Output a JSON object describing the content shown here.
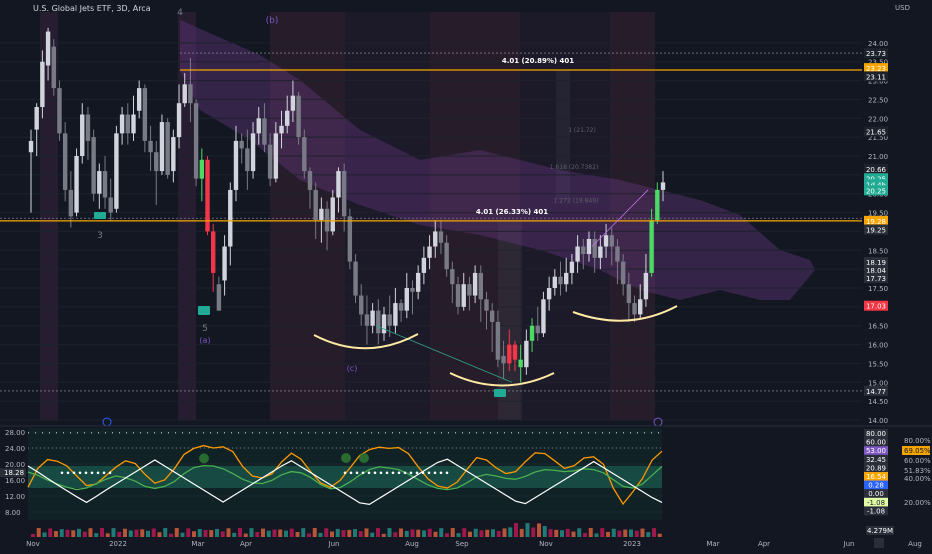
{
  "header": {
    "title": "U.S. Global Jets ETF, 3D, Arca",
    "currency": "USD"
  },
  "colors": {
    "background": "#131722",
    "up": "#22ab94",
    "down": "#f23645",
    "neutral_up": "#d1d4dc",
    "neutral_down": "#787b86",
    "level_line": "#f7a600",
    "cloud": "#6f3b8f",
    "highlight_green": "#4cd964",
    "highlight_red": "#f2364a",
    "arc": "#ffe9a3"
  },
  "chart_data": [
    {
      "type": "candlestick",
      "title": "U.S. Global Jets ETF, 3D, Arca",
      "ylim": [
        14.0,
        24.5
      ],
      "x_ticks": [
        "Nov",
        "2022",
        "Mar",
        "Apr",
        "Jun",
        "Aug",
        "Sep",
        "Nov",
        "2023",
        "Mar",
        "Apr",
        "Jun",
        "Aug"
      ],
      "y_ticks": [
        "24.00",
        "23.50",
        "23.00",
        "22.50",
        "22.00",
        "21.50",
        "21.00",
        "20.50",
        "20.00",
        "19.50",
        "19.00",
        "18.50",
        "18.00",
        "17.50",
        "17.00",
        "16.50",
        "16.00",
        "15.50",
        "15.00",
        "14.50",
        "14.00"
      ],
      "price_tags": [
        {
          "label": "23.73",
          "value": 23.73,
          "color": "#1e222d"
        },
        {
          "label": "23.23",
          "value": 23.33,
          "color": "#f7a600"
        },
        {
          "label": "23.11",
          "value": 23.11,
          "color": "#1e222d"
        },
        {
          "label": "21.65",
          "value": 21.65,
          "color": "#1e222d"
        },
        {
          "label": "20.66",
          "value": 20.66,
          "color": "#1e222d"
        },
        {
          "label": "20.25",
          "value": 20.41,
          "color": "#22ab94"
        },
        {
          "label": "1d 4h",
          "value": 20.25,
          "color": "#22ab94"
        },
        {
          "label": "20.25",
          "value": 20.09,
          "color": "#22ab94"
        },
        {
          "label": "19.28",
          "value": 19.28,
          "color": "#f7a600"
        },
        {
          "label": "19.25",
          "value": 19.05,
          "color": "#2a2e39"
        },
        {
          "label": "18.19",
          "value": 18.19,
          "color": "#2a2e39"
        },
        {
          "label": "18.04",
          "value": 17.98,
          "color": "#2a2e39"
        },
        {
          "label": "17.73",
          "value": 17.77,
          "color": "#2a2e39"
        },
        {
          "label": "17.03",
          "value": 17.03,
          "color": "#f23645"
        },
        {
          "label": "14.77",
          "value": 14.77,
          "color": "#2a2e39"
        }
      ],
      "levels": [
        {
          "value": 23.28,
          "label": "4.01 (20.89%) 401"
        },
        {
          "value": 19.28,
          "label": "4.01 (26.33%) 401"
        }
      ],
      "fib_labels": [
        "1 (21.72)",
        "1.618 (20.7382)",
        "1.272 (19.849)"
      ],
      "wave_labels": [
        "4",
        "(b)",
        "3",
        "5",
        "(a)",
        "(c)"
      ],
      "candles": [
        [
          21.1,
          21.4,
          19.5,
          21.7
        ],
        [
          21.7,
          22.3,
          21.0,
          22.4
        ],
        [
          22.3,
          23.5,
          22.0,
          23.8
        ],
        [
          23.4,
          24.3,
          23.0,
          24.4
        ],
        [
          23.9,
          22.8,
          22.6,
          24.1
        ],
        [
          22.8,
          21.6,
          21.4,
          23.0
        ],
        [
          21.6,
          20.1,
          19.8,
          21.9
        ],
        [
          20.1,
          19.4,
          19.1,
          20.6
        ],
        [
          19.5,
          21.0,
          19.4,
          21.2
        ],
        [
          21.0,
          22.1,
          20.8,
          22.4
        ],
        [
          22.1,
          21.4,
          20.9,
          22.3
        ],
        [
          21.5,
          20.0,
          19.8,
          21.7
        ],
        [
          20.0,
          20.6,
          19.6,
          20.8
        ],
        [
          20.6,
          19.9,
          19.6,
          21.0
        ],
        [
          19.9,
          19.5,
          19.3,
          20.4
        ],
        [
          19.6,
          21.6,
          19.5,
          21.8
        ],
        [
          21.6,
          22.1,
          21.3,
          22.3
        ],
        [
          22.1,
          21.6,
          21.3,
          22.4
        ],
        [
          21.6,
          22.1,
          21.4,
          22.6
        ],
        [
          22.2,
          22.8,
          22.0,
          23.0
        ],
        [
          22.8,
          21.4,
          21.1,
          22.9
        ],
        [
          21.4,
          21.1,
          20.6,
          21.8
        ],
        [
          21.1,
          20.6,
          19.7,
          21.4
        ],
        [
          20.6,
          21.9,
          20.5,
          22.1
        ],
        [
          21.9,
          20.5,
          20.4,
          22.0
        ],
        [
          20.6,
          21.5,
          20.3,
          21.7
        ],
        [
          21.5,
          22.4,
          21.2,
          22.9
        ],
        [
          22.4,
          22.9,
          22.3,
          23.2
        ],
        [
          22.9,
          22.4,
          21.9,
          23.6
        ],
        [
          22.4,
          20.4,
          20.2,
          22.5
        ],
        [
          20.4,
          20.9,
          19.8,
          21.2
        ],
        [
          20.9,
          19.0,
          18.9,
          21.0
        ],
        [
          19.0,
          17.9,
          17.4,
          19.2
        ],
        [
          17.6,
          16.9,
          16.9,
          17.8
        ],
        [
          17.7,
          18.6,
          17.3,
          18.9
        ],
        [
          18.6,
          20.1,
          18.1,
          20.3
        ],
        [
          20.1,
          21.4,
          19.8,
          21.8
        ],
        [
          21.4,
          21.2,
          20.8,
          21.6
        ],
        [
          21.2,
          20.6,
          20.1,
          21.7
        ],
        [
          20.6,
          21.6,
          20.4,
          21.9
        ],
        [
          21.6,
          22.0,
          21.3,
          22.3
        ],
        [
          22.0,
          21.3,
          21.1,
          22.4
        ],
        [
          21.3,
          20.4,
          20.2,
          21.6
        ],
        [
          20.4,
          21.6,
          20.3,
          21.9
        ],
        [
          21.6,
          21.8,
          21.2,
          22.2
        ],
        [
          21.8,
          22.2,
          21.6,
          22.6
        ],
        [
          22.2,
          22.6,
          21.9,
          23.0
        ],
        [
          22.6,
          21.5,
          21.3,
          22.7
        ],
        [
          21.5,
          20.6,
          20.4,
          21.7
        ],
        [
          20.6,
          20.1,
          19.6,
          20.7
        ],
        [
          20.1,
          19.3,
          18.8,
          20.3
        ],
        [
          19.3,
          19.6,
          18.7,
          19.9
        ],
        [
          19.6,
          19.0,
          18.5,
          19.8
        ],
        [
          19.0,
          19.9,
          18.9,
          20.1
        ],
        [
          19.9,
          20.6,
          19.5,
          20.7
        ],
        [
          20.6,
          19.4,
          19.0,
          20.8
        ],
        [
          19.4,
          18.2,
          18.0,
          19.6
        ],
        [
          18.2,
          17.3,
          17.1,
          18.4
        ],
        [
          17.3,
          16.8,
          16.5,
          17.6
        ],
        [
          16.8,
          16.5,
          16.0,
          17.3
        ],
        [
          16.5,
          16.9,
          16.3,
          17.1
        ],
        [
          16.9,
          16.3,
          16.0,
          17.2
        ],
        [
          16.3,
          16.8,
          16.1,
          17.0
        ],
        [
          16.8,
          16.5,
          16.2,
          17.3
        ],
        [
          16.5,
          17.1,
          16.3,
          17.5
        ],
        [
          17.1,
          16.9,
          16.6,
          17.2
        ],
        [
          16.9,
          17.5,
          16.7,
          17.9
        ],
        [
          17.5,
          17.4,
          16.8,
          17.7
        ],
        [
          17.4,
          17.9,
          17.2,
          18.1
        ],
        [
          17.9,
          18.3,
          17.6,
          18.6
        ],
        [
          18.3,
          18.6,
          18.0,
          18.9
        ],
        [
          18.6,
          19.0,
          18.3,
          19.3
        ],
        [
          19.0,
          18.7,
          18.4,
          19.3
        ],
        [
          18.7,
          18.0,
          17.8,
          18.9
        ],
        [
          18.0,
          17.6,
          17.1,
          18.2
        ],
        [
          17.6,
          17.0,
          16.8,
          17.8
        ],
        [
          17.0,
          17.6,
          16.9,
          17.9
        ],
        [
          17.6,
          17.3,
          16.9,
          17.8
        ],
        [
          17.3,
          17.9,
          17.1,
          18.1
        ],
        [
          17.9,
          17.2,
          16.6,
          18.1
        ],
        [
          17.2,
          16.9,
          16.4,
          17.4
        ],
        [
          16.9,
          16.6,
          15.8,
          17.1
        ],
        [
          16.6,
          15.6,
          15.4,
          16.9
        ],
        [
          15.7,
          15.5,
          15.1,
          16.1
        ],
        [
          15.5,
          16.0,
          15.3,
          16.4
        ],
        [
          16.0,
          15.6,
          15.3,
          16.1
        ],
        [
          15.6,
          15.4,
          15.0,
          16.0
        ],
        [
          15.4,
          16.1,
          15.2,
          16.4
        ],
        [
          16.1,
          16.5,
          15.8,
          16.7
        ],
        [
          16.5,
          16.3,
          16.1,
          17.0
        ],
        [
          16.3,
          17.2,
          16.2,
          17.4
        ],
        [
          17.2,
          17.5,
          16.9,
          17.8
        ],
        [
          17.5,
          17.8,
          17.3,
          18.0
        ],
        [
          17.8,
          17.6,
          17.3,
          18.2
        ],
        [
          17.6,
          17.9,
          17.4,
          18.3
        ],
        [
          17.9,
          18.2,
          17.6,
          18.4
        ],
        [
          18.2,
          18.6,
          17.9,
          18.9
        ],
        [
          18.6,
          18.4,
          18.0,
          18.8
        ],
        [
          18.4,
          18.8,
          18.2,
          19.0
        ],
        [
          18.8,
          18.3,
          17.9,
          19.0
        ],
        [
          18.3,
          18.6,
          18.0,
          18.9
        ],
        [
          18.6,
          18.9,
          18.3,
          19.2
        ],
        [
          18.9,
          18.6,
          18.1,
          19.1
        ],
        [
          18.6,
          18.2,
          17.6,
          18.8
        ],
        [
          18.2,
          17.6,
          17.3,
          18.4
        ],
        [
          17.6,
          17.1,
          16.6,
          17.9
        ],
        [
          17.1,
          16.8,
          16.6,
          17.3
        ],
        [
          16.8,
          17.2,
          16.7,
          17.6
        ],
        [
          17.2,
          17.9,
          17.0,
          18.4
        ],
        [
          17.9,
          19.3,
          17.8,
          19.6
        ],
        [
          19.3,
          20.1,
          19.2,
          20.3
        ],
        [
          20.1,
          20.3,
          19.8,
          20.6
        ]
      ]
    },
    {
      "type": "line",
      "title": "",
      "ylim": [
        6.0,
        29.0
      ],
      "y_ticks": [
        "28.00",
        "24.00",
        "20.00",
        "16.00",
        "12.00",
        "8.00"
      ],
      "left_value": "18.28",
      "right_tags": [
        {
          "label": "80.00",
          "value": 28.0
        },
        {
          "label": "60.00",
          "value": 26.4
        },
        {
          "label": "53.00",
          "value": 24.9
        },
        {
          "label": "32.45",
          "value": 23.4
        },
        {
          "label": "20.89",
          "value": 21.9
        },
        {
          "label": "16.54",
          "value": 20.4
        },
        {
          "label": "0.28",
          "value": 18.9
        },
        {
          "label": "0.00",
          "value": 17.4
        },
        {
          "label": "-1.08",
          "value": 15.9
        },
        {
          "label": "-1.08",
          "value": 14.4
        }
      ],
      "pct_labels": [
        "80.00%",
        "69.05%",
        "60.00%",
        "51.83%",
        "40.00%",
        "20.00%"
      ],
      "volume_label": "4.279M",
      "series": [
        {
          "values": [
            14.2,
            18.9,
            21.1,
            20.7,
            19.5,
            17.0,
            14.6,
            15.0,
            17.1,
            19.2,
            20.8,
            20.1,
            17.4,
            15.2,
            16.0,
            18.8,
            22.4,
            23.9,
            24.6,
            24.0,
            24.3,
            23.1,
            19.4,
            17.0,
            16.5,
            17.5,
            20.5,
            22.7,
            21.2,
            18.0,
            15.3,
            14.2,
            15.9,
            19.0,
            22.1,
            23.6,
            24.2,
            23.9,
            24.1,
            22.6,
            19.3,
            16.3,
            14.5,
            14.0,
            15.5,
            18.6,
            21.6,
            21.0,
            19.0,
            17.6,
            18.1,
            20.6,
            22.8,
            22.6,
            20.8,
            18.9,
            19.6,
            21.5,
            21.8,
            19.9,
            14.0,
            10.0,
            13.0,
            16.4,
            21.0,
            23.2
          ]
        },
        {
          "values": [
            18.0,
            17.2,
            16.0,
            15.0,
            14.2,
            13.6,
            14.0,
            15.1,
            16.2,
            17.0,
            16.6,
            15.7,
            14.4,
            13.9,
            14.4,
            15.6,
            17.6,
            19.1,
            19.6,
            19.5,
            18.8,
            17.6,
            16.2,
            15.3,
            15.1,
            15.9,
            17.3,
            18.1,
            17.8,
            16.6,
            14.9,
            13.8,
            14.1,
            15.5,
            17.2,
            18.6,
            19.3,
            19.0,
            18.6,
            17.5,
            16.1,
            14.8,
            13.9,
            13.6,
            14.0,
            15.3,
            16.8,
            17.4,
            17.0,
            16.4,
            16.2,
            16.9,
            18.0,
            18.6,
            18.4,
            18.1,
            18.3,
            18.8,
            18.6,
            17.8,
            16.1,
            14.4,
            14.0,
            15.0,
            17.2,
            19.4
          ]
        },
        {
          "values": [
            19.5,
            18.0,
            16.4,
            14.8,
            13.3,
            11.8,
            10.4,
            11.9,
            13.5,
            15.0,
            16.5,
            18.0,
            19.5,
            21.0,
            19.5,
            18.0,
            16.5,
            15.0,
            13.5,
            12.0,
            10.5,
            12.0,
            13.5,
            15.0,
            16.5,
            18.0,
            19.5,
            20.8,
            19.3,
            17.8,
            16.3,
            14.8,
            13.3,
            11.8,
            10.3,
            9.9,
            11.4,
            12.9,
            14.4,
            15.9,
            17.4,
            18.9,
            20.4,
            21.2,
            19.7,
            18.2,
            16.7,
            15.2,
            13.7,
            12.2,
            10.7,
            10.1,
            11.6,
            13.1,
            14.6,
            16.1,
            17.6,
            19.1,
            20.6,
            19.1,
            17.6,
            16.1,
            14.6,
            13.1,
            11.6,
            10.4
          ]
        }
      ],
      "dot_markers": [
        14.6,
        14.4,
        17.8
      ]
    }
  ]
}
